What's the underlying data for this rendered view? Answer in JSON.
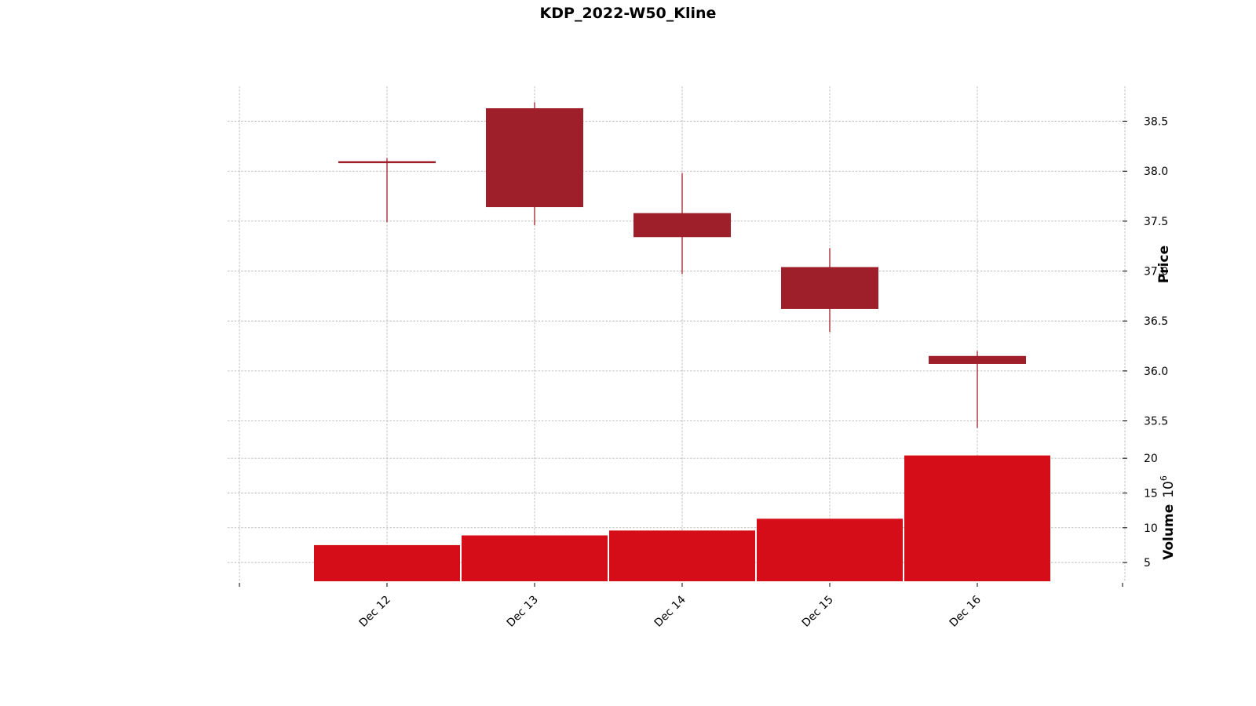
{
  "chart_data": {
    "type": "candlestick",
    "title": "KDP_2022-W50_Kline",
    "categories": [
      "Dec 12",
      "Dec 13",
      "Dec 14",
      "Dec 15",
      "Dec 16"
    ],
    "ohlc": [
      {
        "open": 38.1,
        "high": 38.13,
        "low": 37.49,
        "close": 38.08
      },
      {
        "open": 38.63,
        "high": 38.69,
        "low": 37.46,
        "close": 37.64
      },
      {
        "open": 37.58,
        "high": 37.98,
        "low": 36.97,
        "close": 37.34
      },
      {
        "open": 37.04,
        "high": 37.23,
        "low": 36.39,
        "close": 36.62
      },
      {
        "open": 36.15,
        "high": 36.2,
        "low": 35.43,
        "close": 36.07
      }
    ],
    "volume": [
      7.5,
      8.9,
      9.6,
      11.3,
      20.4
    ],
    "price_axis": {
      "label": "Price",
      "ylim": [
        35.3,
        38.85
      ],
      "ticks": [
        35.5,
        36.0,
        36.5,
        37.0,
        37.5,
        38.0,
        38.5
      ],
      "position": "right"
    },
    "volume_axis": {
      "label": "Volume",
      "multiplier": "10",
      "exponent": "6",
      "ylim": [
        2.3,
        22.5
      ],
      "ticks": [
        5,
        10,
        15,
        20
      ],
      "position": "right"
    },
    "grid": true,
    "colors": {
      "candle_down": "#9e1f29",
      "volume_bar": "#d50d18",
      "grid": "#b0b0b0"
    }
  }
}
